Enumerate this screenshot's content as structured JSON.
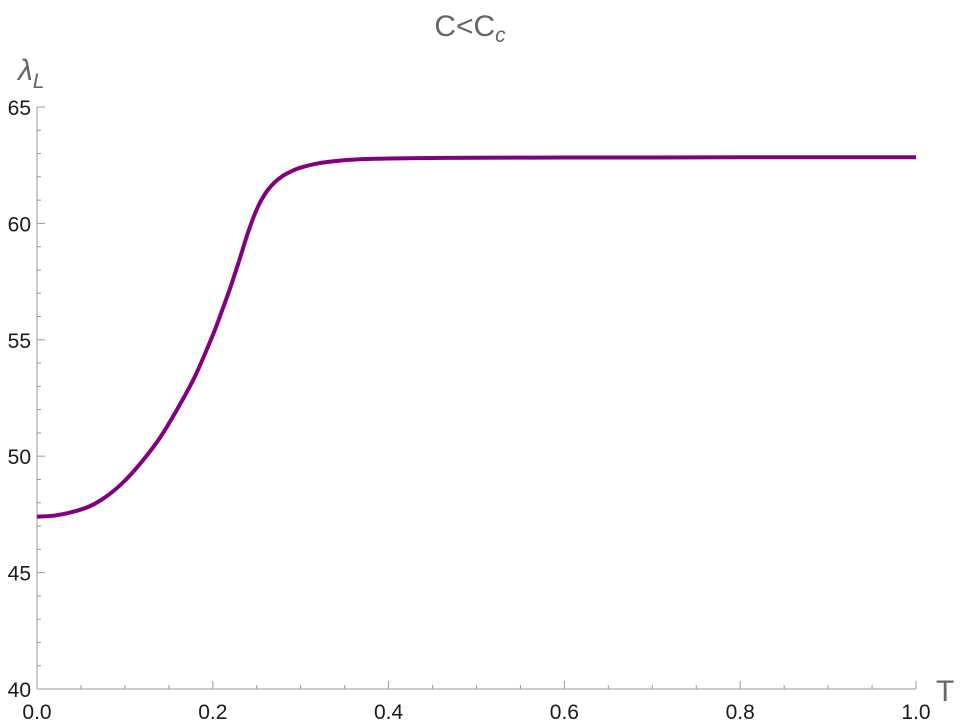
{
  "chart_data": {
    "type": "line",
    "title": {
      "main": "C<C",
      "sub": "c"
    },
    "xlabel": "T",
    "ylabel": {
      "main": "λ",
      "sub": "L"
    },
    "xlim": [
      0,
      1.0
    ],
    "ylim": [
      40,
      65
    ],
    "x_ticks": [
      "0.0",
      "0.2",
      "0.4",
      "0.6",
      "0.8",
      "1.0"
    ],
    "y_ticks": [
      "40",
      "45",
      "50",
      "55",
      "60",
      "65"
    ],
    "grid": false,
    "series": [
      {
        "color": "#800080",
        "x": [
          0.0,
          0.02,
          0.04,
          0.06,
          0.08,
          0.1,
          0.12,
          0.14,
          0.16,
          0.18,
          0.2,
          0.21,
          0.22,
          0.23,
          0.24,
          0.25,
          0.26,
          0.27,
          0.28,
          0.29,
          0.3,
          0.32,
          0.34,
          0.36,
          0.38,
          0.4,
          0.45,
          0.5,
          0.6,
          0.7,
          0.8,
          0.9,
          1.0
        ],
        "y": [
          47.4,
          47.45,
          47.6,
          47.85,
          48.3,
          48.95,
          49.8,
          50.8,
          52.05,
          53.45,
          55.2,
          56.2,
          57.25,
          58.4,
          59.6,
          60.6,
          61.3,
          61.75,
          62.05,
          62.25,
          62.4,
          62.58,
          62.68,
          62.74,
          62.77,
          62.79,
          62.81,
          62.82,
          62.83,
          62.83,
          62.84,
          62.84,
          62.84
        ]
      }
    ]
  }
}
